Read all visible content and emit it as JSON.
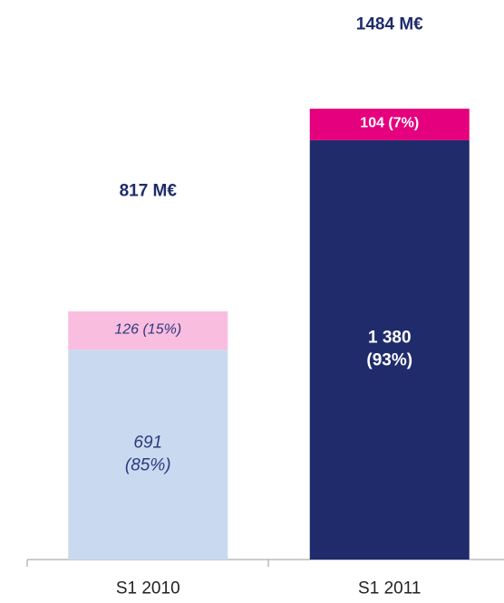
{
  "chart_data": {
    "type": "stacked-bar",
    "categories": [
      "S1 2010",
      "S1 2011"
    ],
    "series": [
      {
        "colors": [
          "#c9d9f0",
          "#1f2b6b"
        ],
        "values": [
          691,
          1380
        ],
        "value_labels": [
          "691 (85%)",
          "1 380 (93%)"
        ]
      },
      {
        "colors": [
          "#f9bde0",
          "#e5007d"
        ],
        "values": [
          126,
          104
        ],
        "value_labels": [
          "126 (15%)",
          "104 (7%)"
        ]
      }
    ],
    "annotations": [
      "817 M€",
      "1484 M€"
    ],
    "ylim": [
      0,
      1800
    ]
  }
}
